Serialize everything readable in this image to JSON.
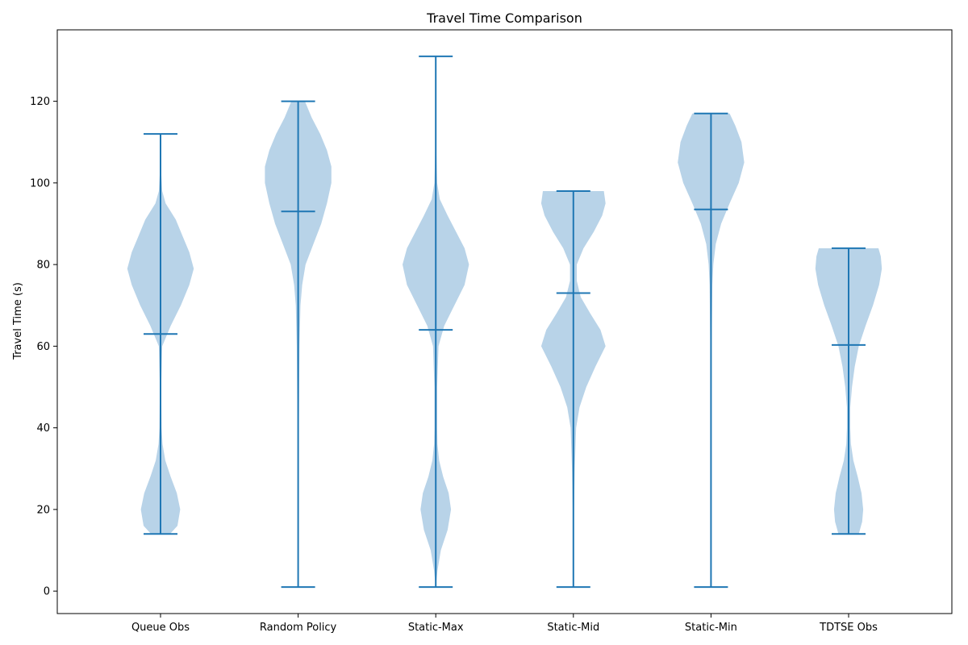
{
  "chart_data": {
    "type": "violin",
    "title": "Travel Time Comparison",
    "xlabel": "",
    "ylabel": "Travel Time (s)",
    "ylim": [
      -5.5,
      137.5
    ],
    "yticks": [
      0,
      20,
      40,
      60,
      80,
      100,
      120
    ],
    "grid": false,
    "legend": "none",
    "colors": {
      "body": "#b8d3e8",
      "line": "#1f77b4"
    },
    "categories": [
      "Queue Obs",
      "Random Policy",
      "Static-Max",
      "Static-Mid",
      "Static-Min",
      "TDTSE Obs"
    ],
    "violins": [
      {
        "name": "Queue Obs",
        "min": 14,
        "max": 112,
        "mean": 63,
        "density": [
          [
            14,
            0.28
          ],
          [
            16,
            0.5
          ],
          [
            20,
            0.58
          ],
          [
            24,
            0.48
          ],
          [
            28,
            0.3
          ],
          [
            32,
            0.14
          ],
          [
            36,
            0.06
          ],
          [
            40,
            0.03
          ],
          [
            50,
            0.02
          ],
          [
            60,
            0.05
          ],
          [
            65,
            0.3
          ],
          [
            70,
            0.6
          ],
          [
            75,
            0.85
          ],
          [
            79,
            0.98
          ],
          [
            83,
            0.85
          ],
          [
            87,
            0.65
          ],
          [
            91,
            0.45
          ],
          [
            95,
            0.15
          ],
          [
            98,
            0.05
          ],
          [
            104,
            0.01
          ],
          [
            112,
            0.0
          ]
        ]
      },
      {
        "name": "Random Policy",
        "min": 1,
        "max": 120,
        "mean": 93,
        "density": [
          [
            1,
            0.0
          ],
          [
            20,
            0.01
          ],
          [
            40,
            0.02
          ],
          [
            60,
            0.04
          ],
          [
            70,
            0.07
          ],
          [
            75,
            0.12
          ],
          [
            80,
            0.22
          ],
          [
            85,
            0.45
          ],
          [
            90,
            0.68
          ],
          [
            95,
            0.85
          ],
          [
            100,
            0.98
          ],
          [
            104,
            0.98
          ],
          [
            108,
            0.85
          ],
          [
            112,
            0.65
          ],
          [
            116,
            0.4
          ],
          [
            120,
            0.2
          ]
        ]
      },
      {
        "name": "Static-Max",
        "min": 1,
        "max": 131,
        "mean": 64,
        "density": [
          [
            1,
            0.0
          ],
          [
            5,
            0.05
          ],
          [
            10,
            0.15
          ],
          [
            15,
            0.35
          ],
          [
            20,
            0.45
          ],
          [
            24,
            0.38
          ],
          [
            28,
            0.22
          ],
          [
            32,
            0.1
          ],
          [
            36,
            0.05
          ],
          [
            40,
            0.04
          ],
          [
            50,
            0.04
          ],
          [
            60,
            0.08
          ],
          [
            65,
            0.25
          ],
          [
            70,
            0.55
          ],
          [
            75,
            0.85
          ],
          [
            80,
            0.98
          ],
          [
            84,
            0.85
          ],
          [
            88,
            0.6
          ],
          [
            92,
            0.35
          ],
          [
            96,
            0.12
          ],
          [
            100,
            0.04
          ],
          [
            110,
            0.01
          ],
          [
            131,
            0.0
          ]
        ]
      },
      {
        "name": "Static-Mid",
        "min": 1,
        "max": 98,
        "mean": 73,
        "density": [
          [
            1,
            0.0
          ],
          [
            20,
            0.02
          ],
          [
            30,
            0.04
          ],
          [
            40,
            0.08
          ],
          [
            45,
            0.18
          ],
          [
            50,
            0.38
          ],
          [
            55,
            0.65
          ],
          [
            60,
            0.95
          ],
          [
            64,
            0.8
          ],
          [
            68,
            0.5
          ],
          [
            72,
            0.22
          ],
          [
            76,
            0.1
          ],
          [
            80,
            0.1
          ],
          [
            84,
            0.3
          ],
          [
            88,
            0.6
          ],
          [
            92,
            0.85
          ],
          [
            95,
            0.95
          ],
          [
            98,
            0.9
          ]
        ]
      },
      {
        "name": "Static-Min",
        "min": 1,
        "max": 117,
        "mean": 93.5,
        "density": [
          [
            1,
            0.0
          ],
          [
            30,
            0.01
          ],
          [
            60,
            0.02
          ],
          [
            75,
            0.04
          ],
          [
            80,
            0.07
          ],
          [
            85,
            0.14
          ],
          [
            90,
            0.3
          ],
          [
            95,
            0.55
          ],
          [
            100,
            0.82
          ],
          [
            105,
            0.98
          ],
          [
            110,
            0.9
          ],
          [
            114,
            0.72
          ],
          [
            117,
            0.55
          ]
        ]
      },
      {
        "name": "TDTSE Obs",
        "min": 14,
        "max": 84,
        "mean": 60.3,
        "density": [
          [
            14,
            0.3
          ],
          [
            17,
            0.4
          ],
          [
            20,
            0.43
          ],
          [
            24,
            0.38
          ],
          [
            28,
            0.27
          ],
          [
            32,
            0.14
          ],
          [
            36,
            0.07
          ],
          [
            40,
            0.05
          ],
          [
            45,
            0.05
          ],
          [
            50,
            0.1
          ],
          [
            55,
            0.18
          ],
          [
            60,
            0.3
          ],
          [
            65,
            0.5
          ],
          [
            70,
            0.72
          ],
          [
            75,
            0.9
          ],
          [
            79,
            0.98
          ],
          [
            82,
            0.95
          ],
          [
            84,
            0.88
          ]
        ]
      }
    ]
  }
}
